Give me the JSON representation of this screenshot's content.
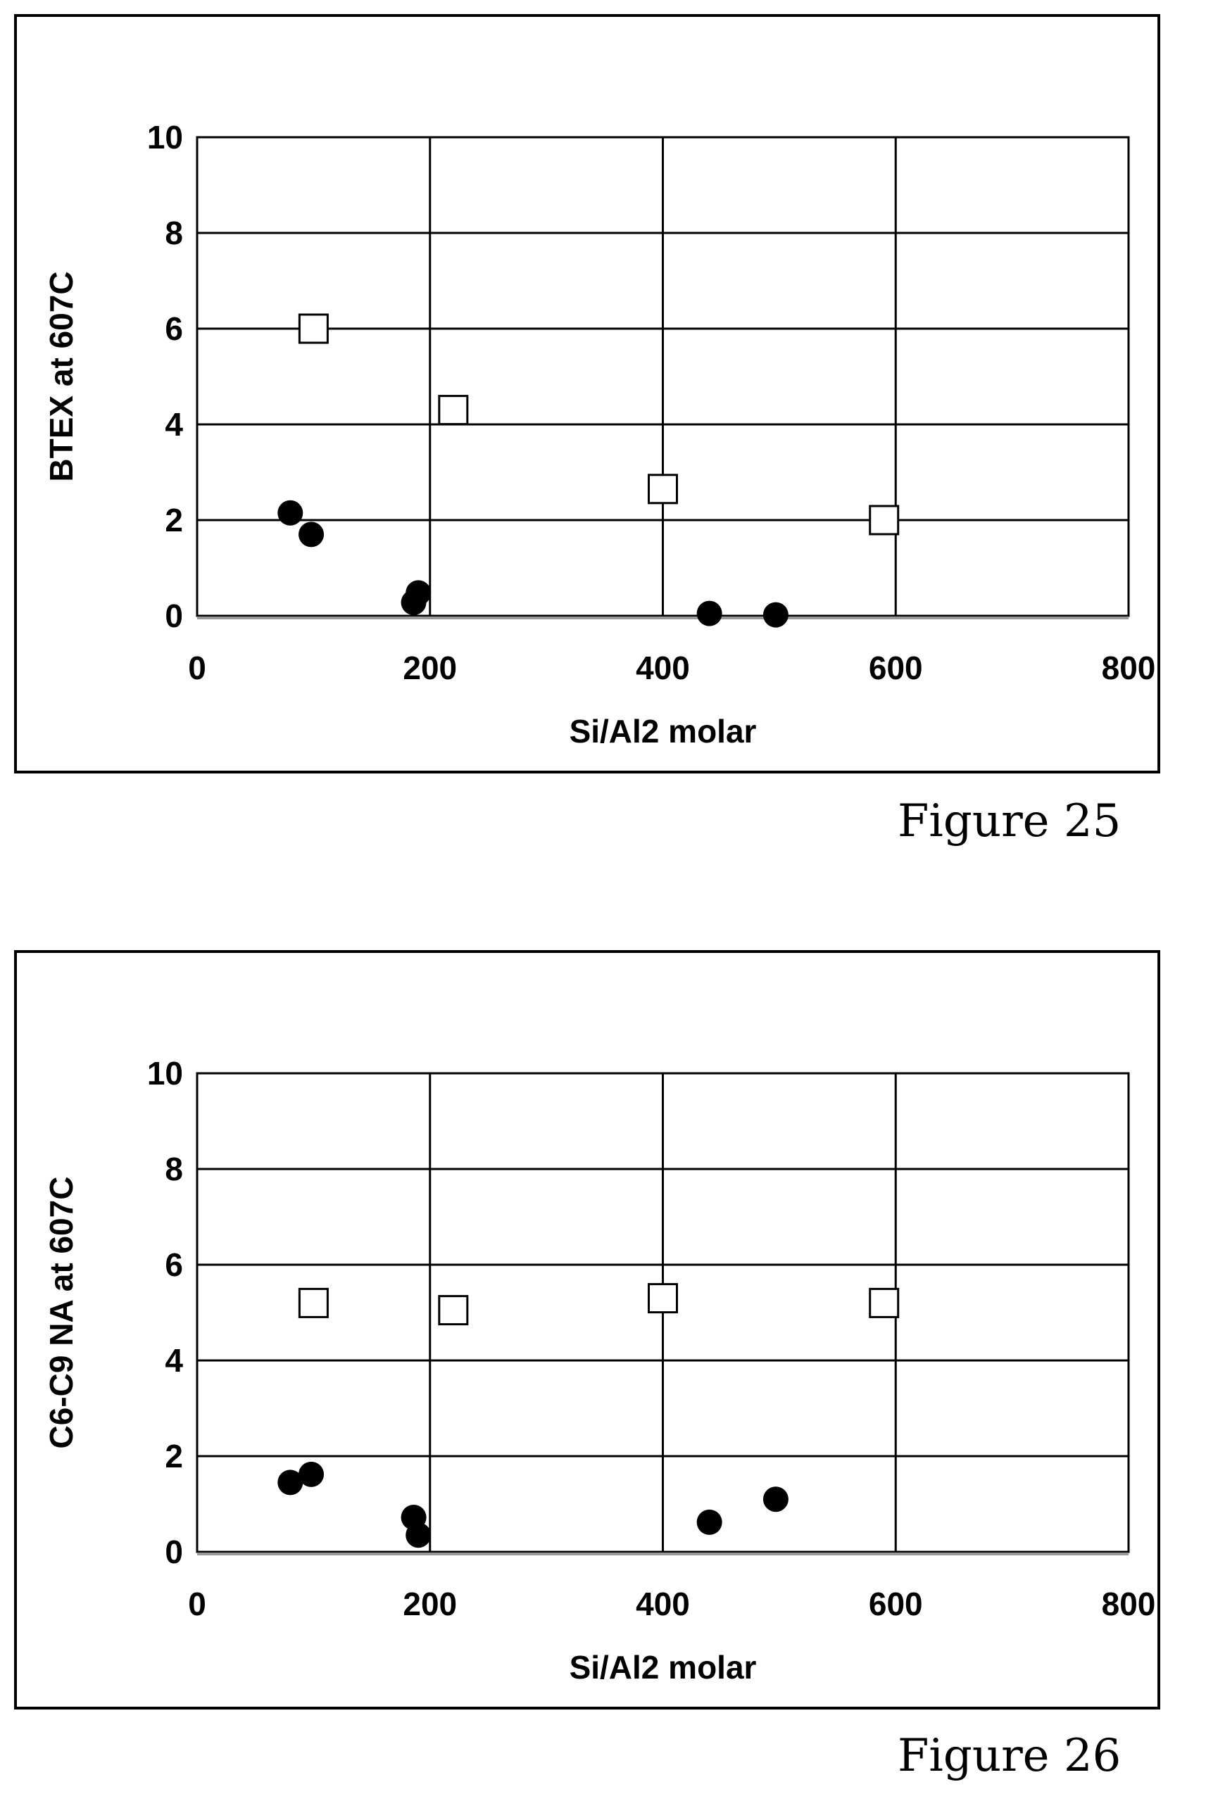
{
  "chart_data": [
    {
      "type": "scatter",
      "title": "",
      "xlabel": "Si/Al2 molar",
      "ylabel": "BTEX  at 607C",
      "xlim": [
        0,
        800
      ],
      "ylim": [
        0,
        10
      ],
      "xticks": [
        "0",
        "200",
        "400",
        "600",
        "800"
      ],
      "yticks": [
        "0",
        "2",
        "4",
        "6",
        "8",
        "10"
      ],
      "grid": true,
      "legend": "none",
      "caption": "Figure 25",
      "series": [
        {
          "marker": "open-square",
          "color": "#000000",
          "points": [
            [
              100,
              6.0
            ],
            [
              220,
              4.3
            ],
            [
              400,
              2.65
            ],
            [
              590,
              2.0
            ]
          ]
        },
        {
          "marker": "filled-circle",
          "color": "#000000",
          "points": [
            [
              80,
              2.15
            ],
            [
              98,
              1.7
            ],
            [
              186,
              0.28
            ],
            [
              190,
              0.48
            ],
            [
              440,
              0.05
            ],
            [
              497,
              0.02
            ]
          ]
        }
      ]
    },
    {
      "type": "scatter",
      "title": "",
      "xlabel": "Si/Al2 molar",
      "ylabel": "C6-C9 NA at 607C",
      "xlim": [
        0,
        800
      ],
      "ylim": [
        0,
        10
      ],
      "xticks": [
        "0",
        "200",
        "400",
        "600",
        "800"
      ],
      "yticks": [
        "0",
        "2",
        "4",
        "6",
        "8",
        "10"
      ],
      "grid": true,
      "legend": "none",
      "caption": "Figure 26",
      "series": [
        {
          "marker": "open-square",
          "color": "#000000",
          "points": [
            [
              100,
              5.2
            ],
            [
              220,
              5.05
            ],
            [
              400,
              5.3
            ],
            [
              590,
              5.2
            ]
          ]
        },
        {
          "marker": "filled-circle",
          "color": "#000000",
          "points": [
            [
              80,
              1.45
            ],
            [
              98,
              1.62
            ],
            [
              186,
              0.72
            ],
            [
              190,
              0.35
            ],
            [
              440,
              0.62
            ],
            [
              497,
              1.1
            ]
          ]
        }
      ]
    }
  ]
}
